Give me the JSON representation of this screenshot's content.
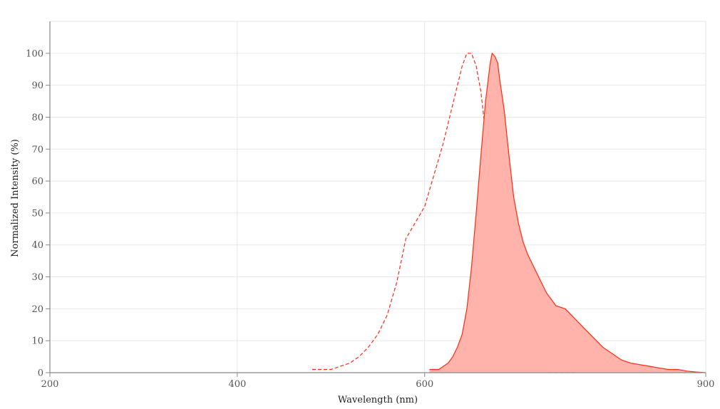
{
  "chart_data": {
    "type": "area",
    "xlabel": "Wavelength (nm)",
    "ylabel": "Normalized Intensity (%)",
    "xlim": [
      200,
      900
    ],
    "ylim": [
      0,
      110
    ],
    "x_ticks": [
      200,
      400,
      600,
      900
    ],
    "y_ticks": [
      0,
      10,
      20,
      30,
      40,
      50,
      60,
      70,
      80,
      90,
      100
    ],
    "grid": true,
    "colors": {
      "line": "#ff2a12",
      "fill": "#ffb3aa",
      "grid": "#e6e6e6",
      "axis": "#888888"
    },
    "series": [
      {
        "style": "dashed",
        "x": [
          480,
          500,
          510,
          520,
          530,
          540,
          550,
          560,
          570,
          580,
          590,
          600,
          610,
          620,
          630,
          640,
          645,
          650,
          655,
          660,
          665,
          670,
          675,
          680,
          685,
          690,
          695,
          700,
          705,
          710,
          720,
          730,
          740,
          760
        ],
        "y": [
          1,
          1,
          2,
          3,
          5,
          8,
          12,
          18,
          28,
          42,
          47,
          52,
          62,
          72,
          84,
          96,
          100,
          100,
          96,
          88,
          75,
          58,
          42,
          28,
          16,
          9,
          5,
          2,
          1,
          0.5,
          0.5,
          0,
          0,
          0
        ]
      },
      {
        "style": "solid-filled",
        "x": [
          605,
          615,
          625,
          630,
          635,
          640,
          645,
          650,
          655,
          660,
          665,
          670,
          672,
          675,
          678,
          680,
          685,
          690,
          695,
          700,
          705,
          710,
          720,
          730,
          740,
          750,
          760,
          770,
          780,
          790,
          800,
          810,
          820,
          830,
          840,
          850,
          860,
          870,
          880,
          890,
          900
        ],
        "y": [
          1,
          1,
          3,
          5,
          8,
          12,
          20,
          33,
          50,
          68,
          85,
          97,
          100,
          99,
          97,
          92,
          82,
          68,
          55,
          47,
          41,
          37,
          31,
          25,
          21,
          20,
          17,
          14,
          11,
          8,
          6,
          4,
          3,
          2.5,
          2,
          1.5,
          1,
          1,
          0.5,
          0.2,
          0
        ]
      }
    ]
  }
}
